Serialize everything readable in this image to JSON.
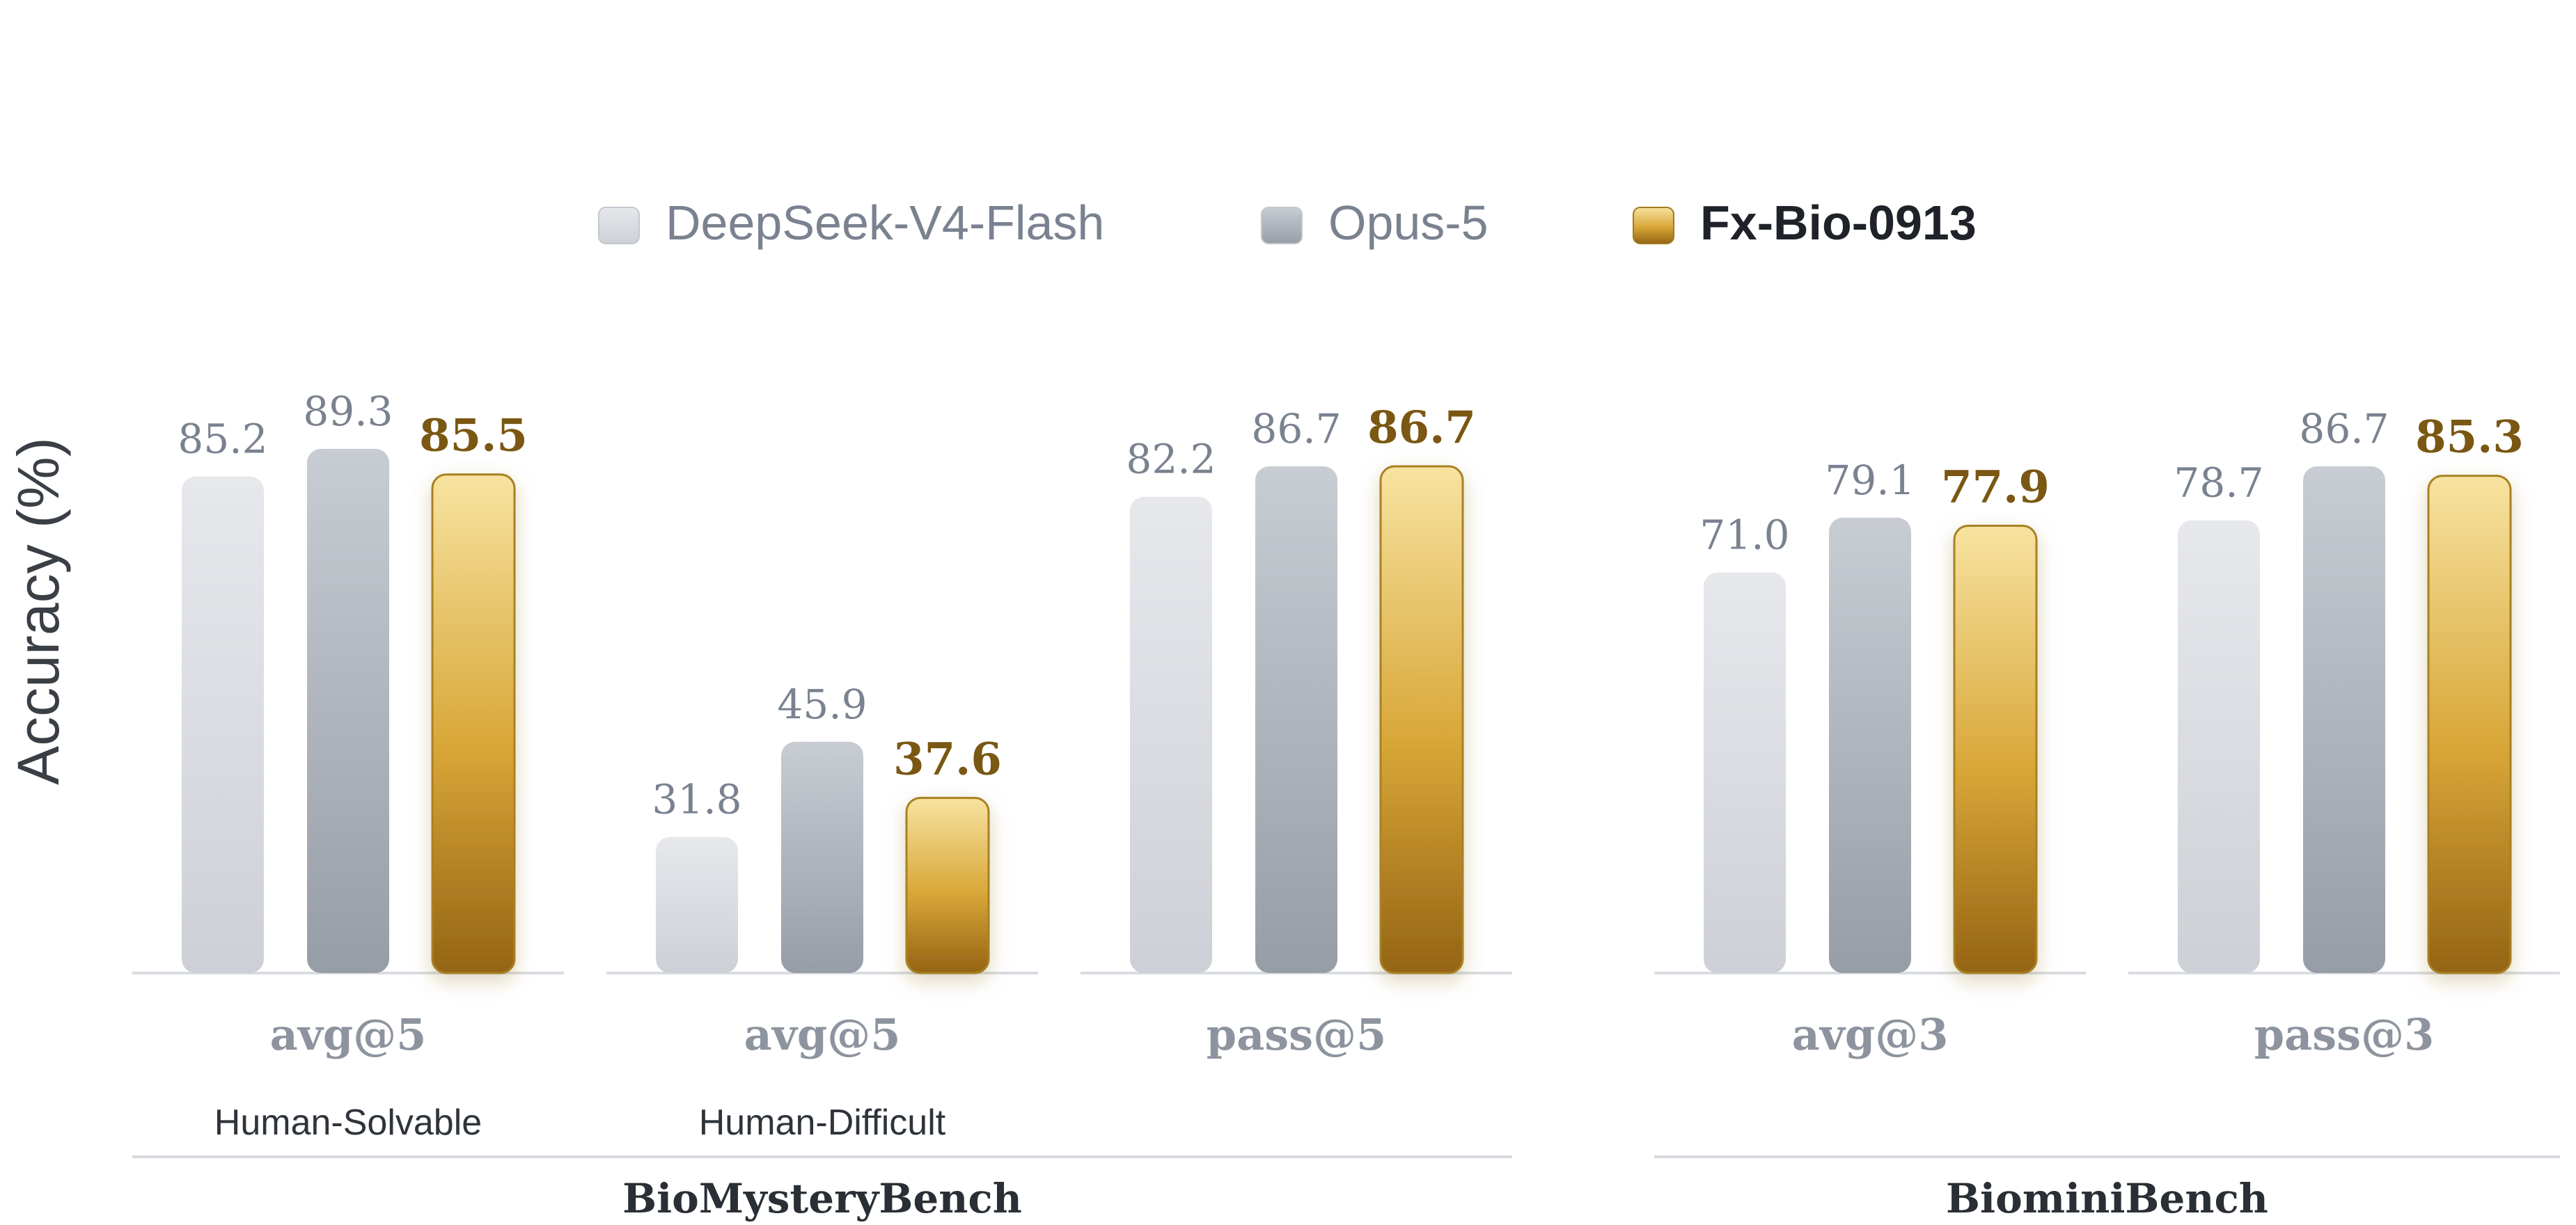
{
  "chart_data": {
    "type": "bar",
    "ylabel": "Accuracy (%)",
    "ylim": [
      0,
      100
    ],
    "legend_position": "top-center",
    "series": [
      {
        "name": "DeepSeek-V4-Flash",
        "color": "#d6d9de",
        "values": [
          85.2,
          31.8,
          82.2,
          71.0,
          78.7
        ]
      },
      {
        "name": "Opus-5",
        "color": "#a9aeb7",
        "values": [
          89.3,
          45.9,
          86.7,
          79.1,
          86.7
        ]
      },
      {
        "name": "Fx-Bio-0913",
        "color": "#d4a534",
        "highlight": true,
        "values": [
          85.5,
          37.6,
          86.7,
          77.9,
          85.3
        ]
      }
    ],
    "categories": [
      "avg@5",
      "avg@5",
      "pass@5",
      "avg@3",
      "pass@3"
    ],
    "subcategories": [
      "Human-Solvable",
      "Human-Difficult",
      "",
      "",
      ""
    ],
    "benchmarks": [
      {
        "name": "BioMysteryBench",
        "groups": [
          0,
          1,
          2
        ]
      },
      {
        "name": "BiominiBench",
        "groups": [
          3,
          4
        ]
      }
    ],
    "value_labels": [
      [
        "85.2",
        "89.3",
        "85.5"
      ],
      [
        "31.8",
        "45.9",
        "37.6"
      ],
      [
        "82.2",
        "86.7",
        "86.7"
      ],
      [
        "71.0",
        "79.1",
        "77.9"
      ],
      [
        "78.7",
        "86.7",
        "85.3"
      ]
    ]
  }
}
